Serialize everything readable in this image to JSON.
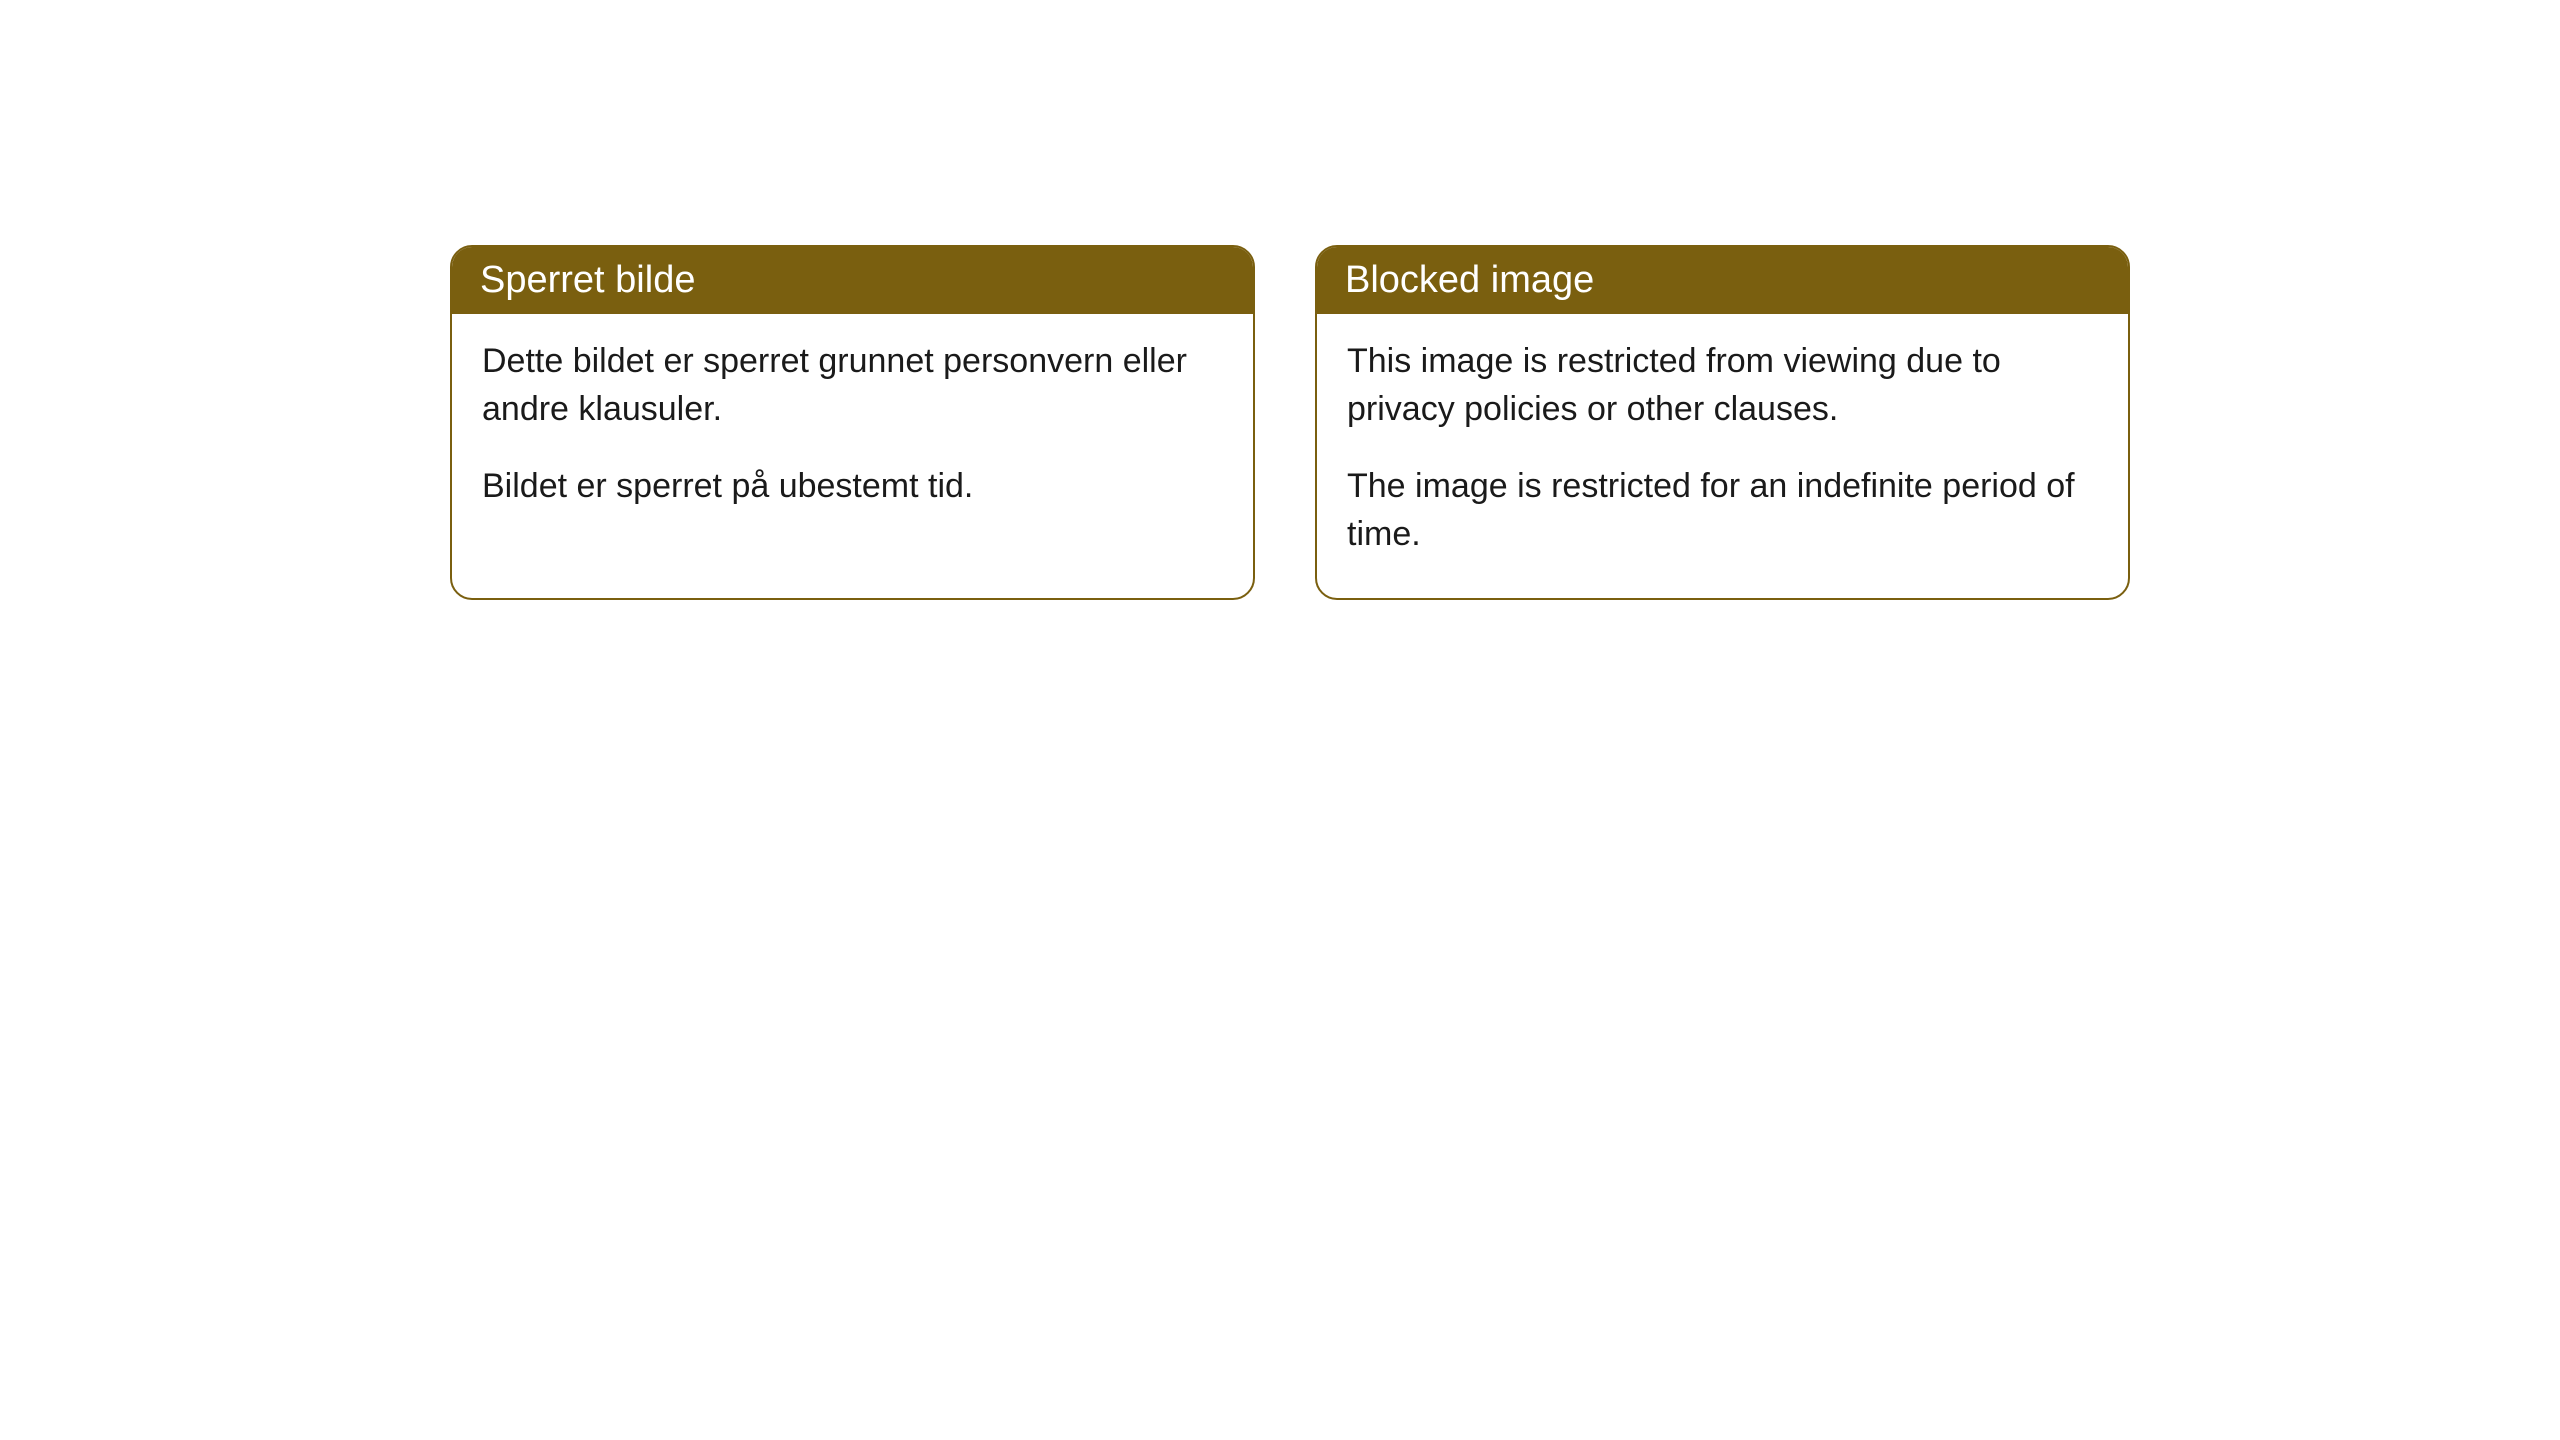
{
  "cards": [
    {
      "title": "Sperret bilde",
      "paragraph1": "Dette bildet er sperret grunnet personvern eller andre klausuler.",
      "paragraph2": "Bildet er sperret på ubestemt tid."
    },
    {
      "title": "Blocked image",
      "paragraph1": "This image is restricted from viewing due to privacy policies or other clauses.",
      "paragraph2": "The image is restricted for an indefinite period of time."
    }
  ],
  "styling": {
    "header_background_color": "#7a5f0f",
    "header_text_color": "#ffffff",
    "border_color": "#7a5f0f",
    "card_background_color": "#ffffff",
    "body_background_color": "#ffffff",
    "body_text_color": "#1a1a1a",
    "border_radius": 22,
    "header_font_size": 38,
    "body_font_size": 34
  }
}
